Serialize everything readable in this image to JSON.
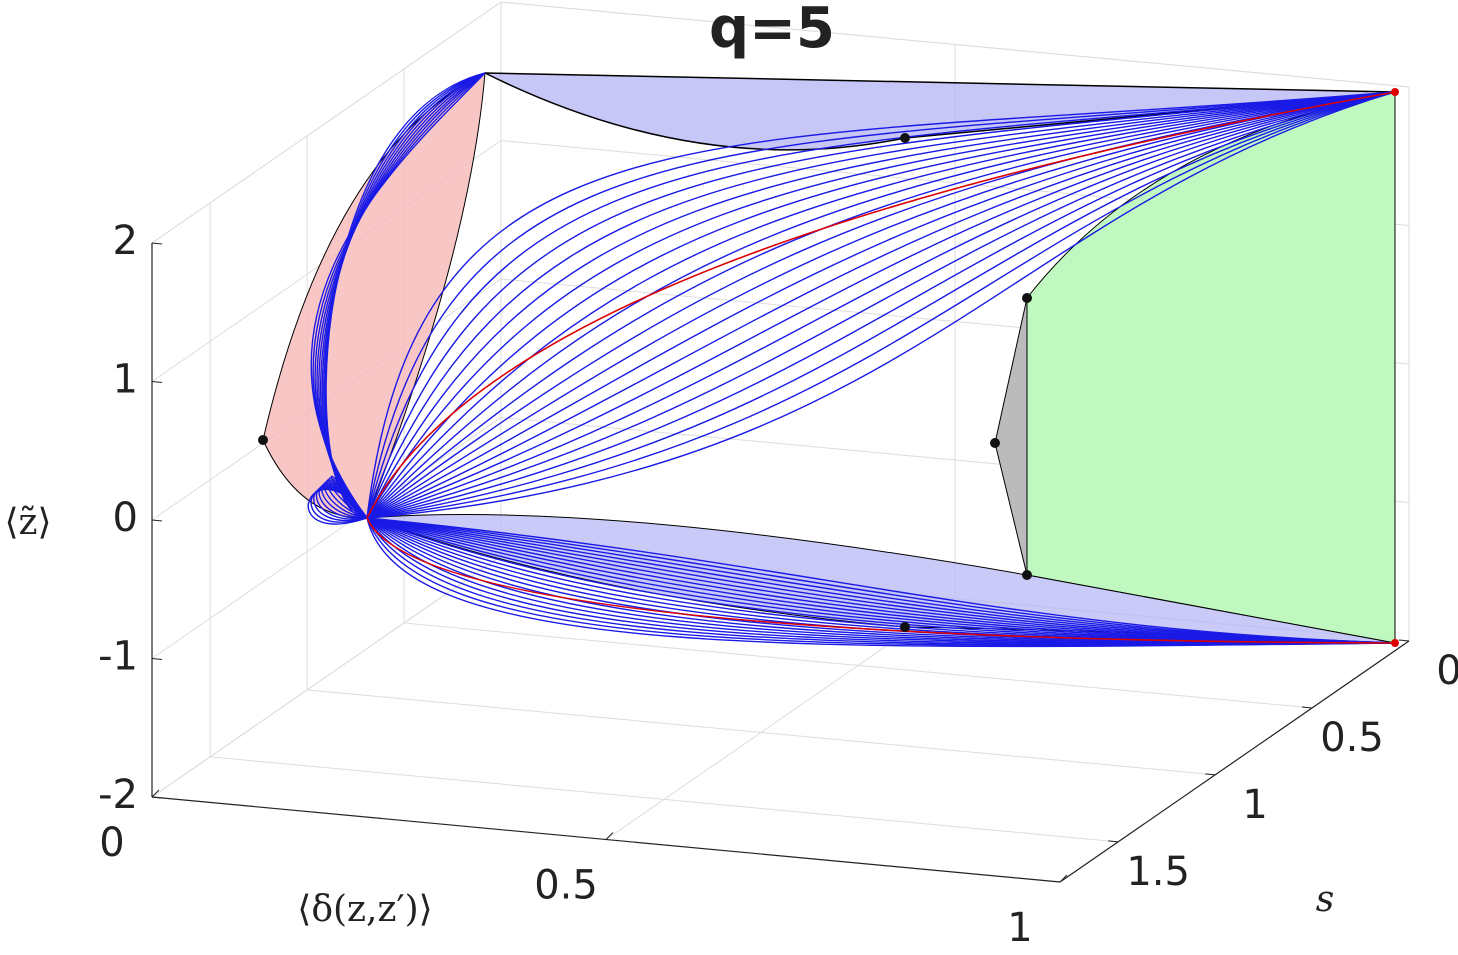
{
  "chart_data": {
    "type": "surface3d",
    "title": "q=5",
    "xlabel": "⟨δ(z,z′)⟩",
    "ylabel": "s",
    "zlabel": "⟨z̃⟩",
    "xlim": [
      0,
      1
    ],
    "xticks": [
      0,
      0.5,
      1
    ],
    "ylim": [
      1.8,
      0
    ],
    "yticks": [
      0,
      0.5,
      1,
      1.5
    ],
    "zlim": [
      -2,
      2
    ],
    "zticks": [
      -2,
      -1,
      0,
      1,
      2
    ],
    "grid": true
  }
}
